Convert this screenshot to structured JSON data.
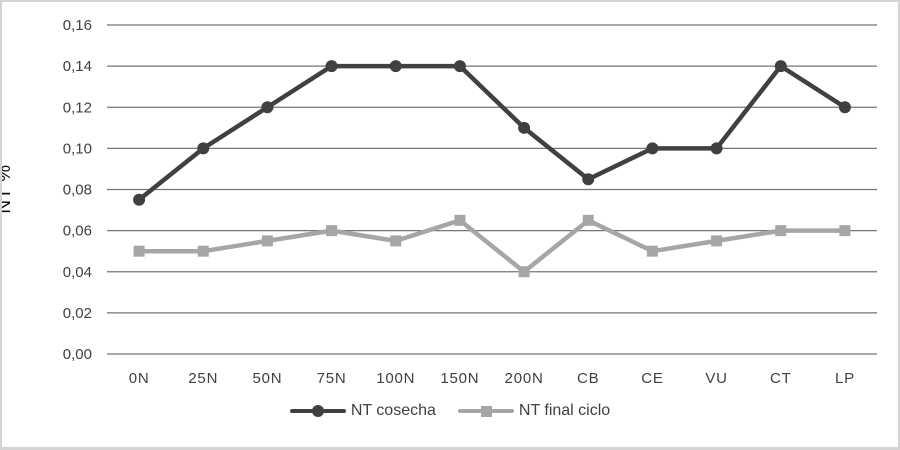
{
  "chart_data": {
    "type": "line",
    "title": "",
    "xlabel": "",
    "ylabel": "NT %",
    "categories": [
      "0N",
      "25N",
      "50N",
      "75N",
      "100N",
      "150N",
      "200N",
      "CB",
      "CE",
      "VU",
      "CT",
      "LP"
    ],
    "series": [
      {
        "name": "NT cosecha",
        "marker": "circle",
        "color": "#404040",
        "values": [
          0.075,
          0.1,
          0.12,
          0.14,
          0.14,
          0.14,
          0.11,
          0.085,
          0.1,
          0.1,
          0.14,
          0.12
        ]
      },
      {
        "name": "NT final ciclo",
        "marker": "square",
        "color": "#a6a6a6",
        "values": [
          0.05,
          0.05,
          0.055,
          0.06,
          0.055,
          0.065,
          0.04,
          0.065,
          0.05,
          0.055,
          0.06,
          0.06
        ]
      }
    ],
    "ylim": [
      0,
      0.16
    ],
    "y_tick_values": [
      0,
      0.02,
      0.04,
      0.06,
      0.08,
      0.1,
      0.12,
      0.14,
      0.16
    ],
    "y_tick_labels": [
      "0,00",
      "0,02",
      "0,04",
      "0,06",
      "0,08",
      "0,10",
      "0,12",
      "0,14",
      "0,16"
    ],
    "grid": "horizontal",
    "legend_position": "bottom",
    "colors": {
      "gridline": "#757575",
      "tick_text": "#404040",
      "axis_title_text": "#111111",
      "figure_border": "#d4d4d4",
      "background": "#ffffff"
    }
  }
}
